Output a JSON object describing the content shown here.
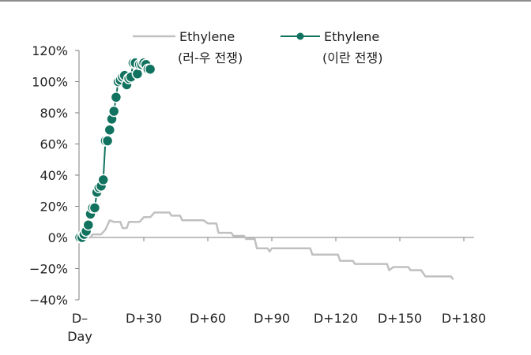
{
  "chart_data": {
    "type": "line",
    "title": "",
    "xlabel": "",
    "ylabel": "",
    "x_ticks": [
      {
        "value": 0,
        "label": [
          "D–",
          "Day"
        ]
      },
      {
        "value": 30,
        "label": [
          "D+30"
        ]
      },
      {
        "value": 60,
        "label": [
          "D+60"
        ]
      },
      {
        "value": 90,
        "label": [
          "D+90"
        ]
      },
      {
        "value": 120,
        "label": [
          "D+120"
        ]
      },
      {
        "value": 150,
        "label": [
          "D+150"
        ]
      },
      {
        "value": 180,
        "label": [
          "D+180"
        ]
      }
    ],
    "y_ticks": [
      {
        "value": -40,
        "label": "−40%"
      },
      {
        "value": -20,
        "label": "−20%"
      },
      {
        "value": 0,
        "label": "0%"
      },
      {
        "value": 20,
        "label": "20%"
      },
      {
        "value": 40,
        "label": "40%"
      },
      {
        "value": 60,
        "label": "60%"
      },
      {
        "value": 80,
        "label": "80%"
      },
      {
        "value": 100,
        "label": "100%"
      },
      {
        "value": 120,
        "label": "120%"
      }
    ],
    "xlim": [
      0,
      182
    ],
    "ylim": [
      -40,
      120
    ],
    "grid": false,
    "legend_position": "top",
    "series": [
      {
        "name": "Ethylene",
        "name_line2": "(러-우 전쟁)",
        "style": "line",
        "color": "#c0c0c0",
        "points": [
          [
            0,
            0
          ],
          [
            5,
            0
          ],
          [
            6,
            2
          ],
          [
            10,
            2
          ],
          [
            12,
            5
          ],
          [
            14,
            11
          ],
          [
            16,
            10
          ],
          [
            19,
            10
          ],
          [
            20,
            6
          ],
          [
            22,
            6
          ],
          [
            23,
            10
          ],
          [
            28,
            10
          ],
          [
            30,
            13
          ],
          [
            33,
            13
          ],
          [
            35,
            16
          ],
          [
            42,
            16
          ],
          [
            43,
            14
          ],
          [
            47,
            14
          ],
          [
            48,
            11
          ],
          [
            58,
            11
          ],
          [
            60,
            9
          ],
          [
            64,
            9
          ],
          [
            65,
            3
          ],
          [
            71,
            3
          ],
          [
            72,
            1
          ],
          [
            77,
            1
          ],
          [
            78,
            -1
          ],
          [
            82,
            -1
          ],
          [
            83,
            -7
          ],
          [
            88,
            -7
          ],
          [
            89,
            -9
          ],
          [
            90,
            -7
          ],
          [
            108,
            -7
          ],
          [
            109,
            -11
          ],
          [
            121,
            -11
          ],
          [
            122,
            -15
          ],
          [
            128,
            -15
          ],
          [
            129,
            -17
          ],
          [
            144,
            -17
          ],
          [
            145,
            -21
          ],
          [
            147,
            -19
          ],
          [
            154,
            -19
          ],
          [
            155,
            -21
          ],
          [
            160,
            -21
          ],
          [
            162,
            -25
          ],
          [
            174,
            -25
          ],
          [
            175,
            -27
          ]
        ]
      },
      {
        "name": "Ethylene",
        "name_line2": "(이란 전쟁)",
        "style": "line-marker",
        "color": "#11735f",
        "points": [
          [
            0,
            0
          ],
          [
            1,
            0
          ],
          [
            2,
            2
          ],
          [
            3,
            4
          ],
          [
            4,
            8
          ],
          [
            5,
            15
          ],
          [
            6,
            19
          ],
          [
            7,
            19
          ],
          [
            8,
            29
          ],
          [
            9,
            32
          ],
          [
            10,
            33
          ],
          [
            11,
            37
          ],
          [
            12,
            62
          ],
          [
            13,
            62
          ],
          [
            14,
            69
          ],
          [
            15,
            76
          ],
          [
            16,
            81
          ],
          [
            17,
            90
          ],
          [
            18,
            100
          ],
          [
            19,
            101
          ],
          [
            20,
            103
          ],
          [
            21,
            104
          ],
          [
            22,
            98
          ],
          [
            23,
            102
          ],
          [
            24,
            103
          ],
          [
            25,
            112
          ],
          [
            26,
            112
          ],
          [
            27,
            105
          ],
          [
            28,
            111
          ],
          [
            29,
            111
          ],
          [
            30,
            112
          ],
          [
            31,
            111
          ],
          [
            32,
            108
          ],
          [
            33,
            108
          ]
        ]
      }
    ]
  }
}
